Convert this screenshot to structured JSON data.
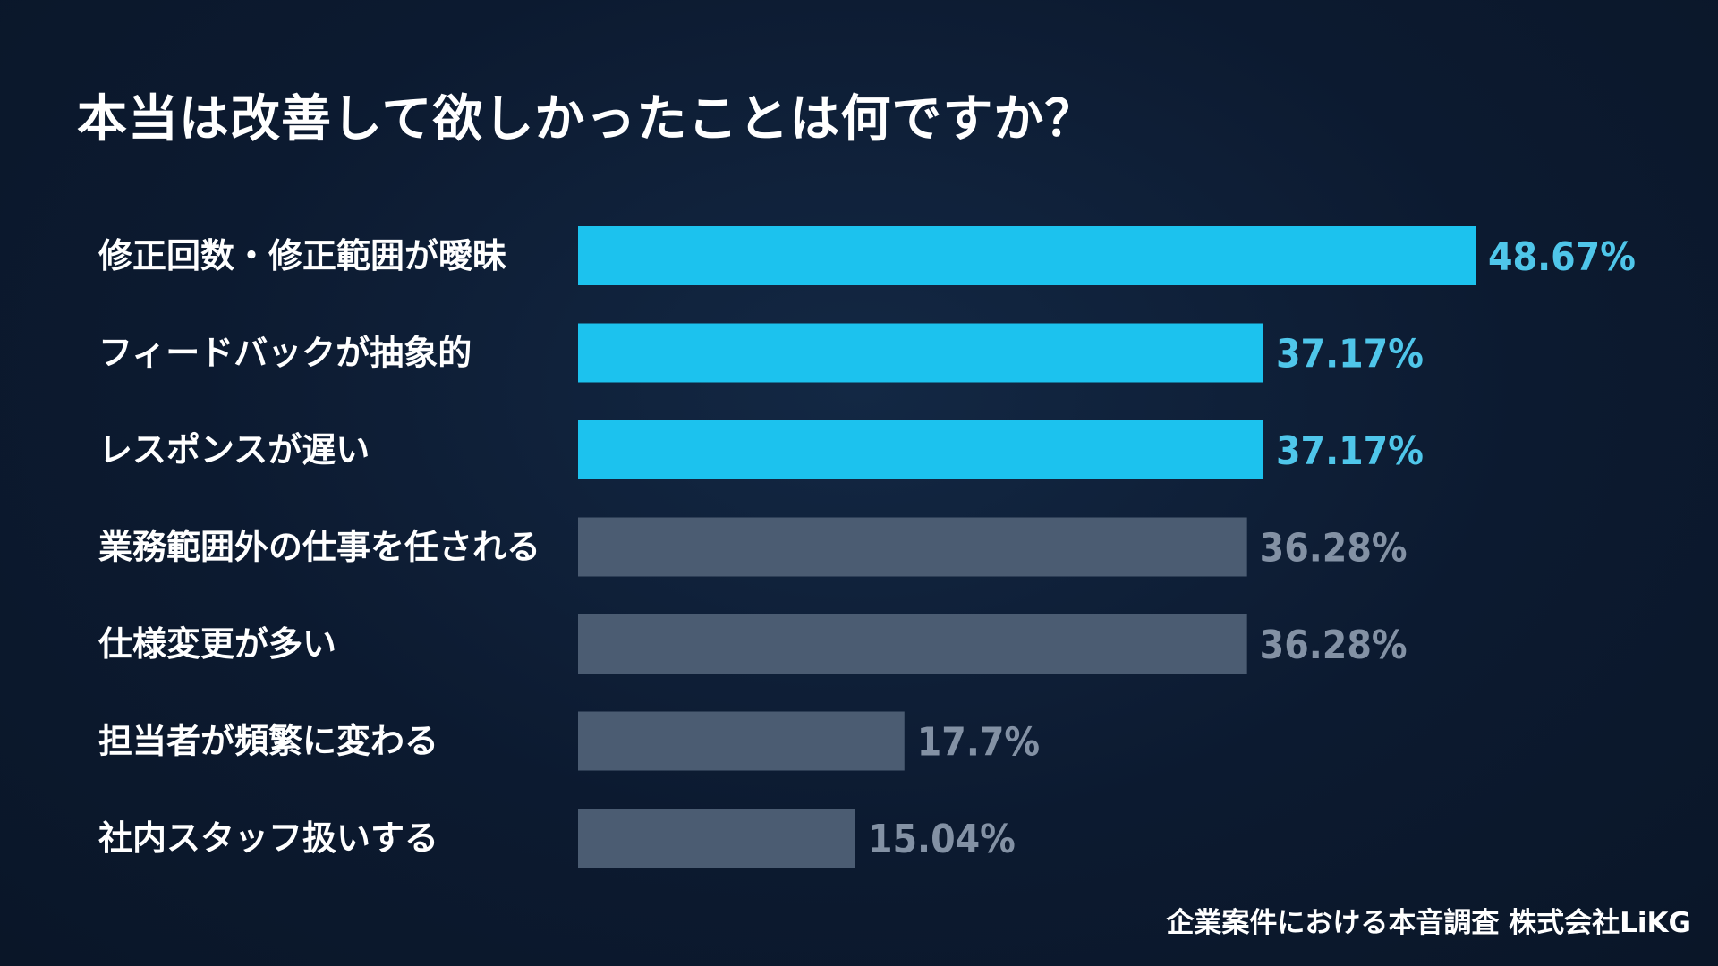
{
  "title": "本当は改善して欲しかったことは何ですか？",
  "footer": "企業案件における本音調査  株式会社LiKG",
  "colors": {
    "background": "#0d1c33",
    "highlight_bar": "#1cc2ee",
    "highlight_label": "#4fc6ea",
    "muted_bar": "#4b5c72",
    "muted_label": "#8391a4",
    "text": "#ffffff"
  },
  "chart_data": {
    "type": "bar",
    "orientation": "horizontal",
    "categories": [
      "修正回数・修正範囲が曖昧",
      "フィードバックが抽象的",
      "レスポンスが遅い",
      "業務範囲外の仕事を任される",
      "仕様変更が多い",
      "担当者が頻繁に変わる",
      "社内スタッフ扱いする"
    ],
    "values": [
      48.67,
      37.17,
      37.17,
      36.28,
      36.28,
      17.7,
      15.04
    ],
    "value_labels": [
      "48.67%",
      "37.17%",
      "37.17%",
      "36.28%",
      "36.28%",
      "17.7%",
      "15.04%"
    ],
    "highlighted": [
      true,
      true,
      true,
      false,
      false,
      false,
      false
    ],
    "grid": false,
    "legend": "none"
  }
}
